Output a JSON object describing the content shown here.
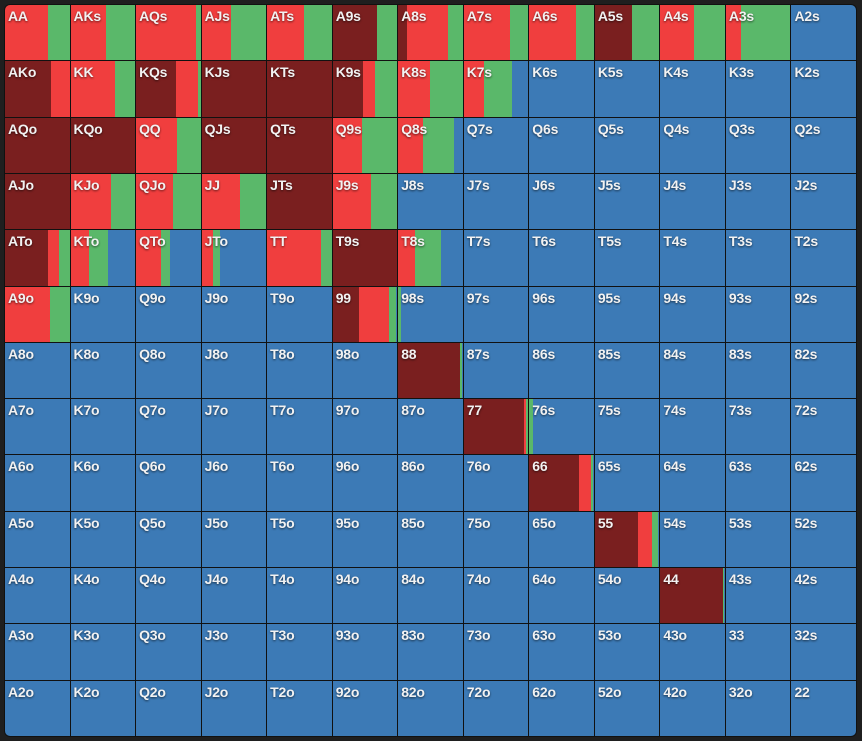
{
  "colors": {
    "raise_large": "#7a1f1f",
    "raise": "#f03e3e",
    "call": "#5ab86a",
    "fold": "#3c7ab6"
  },
  "mix_order": [
    "raise_large",
    "raise",
    "call",
    "fold"
  ],
  "default_mix": [
    0,
    0,
    0,
    1
  ],
  "grid": [
    [
      "AA",
      "AKs",
      "AQs",
      "AJs",
      "ATs",
      "A9s",
      "A8s",
      "A7s",
      "A6s",
      "A5s",
      "A4s",
      "A3s",
      "A2s"
    ],
    [
      "AKo",
      "KK",
      "KQs",
      "KJs",
      "KTs",
      "K9s",
      "K8s",
      "K7s",
      "K6s",
      "K5s",
      "K4s",
      "K3s",
      "K2s"
    ],
    [
      "AQo",
      "KQo",
      "QQ",
      "QJs",
      "QTs",
      "Q9s",
      "Q8s",
      "Q7s",
      "Q6s",
      "Q5s",
      "Q4s",
      "Q3s",
      "Q2s"
    ],
    [
      "AJo",
      "KJo",
      "QJo",
      "JJ",
      "JTs",
      "J9s",
      "J8s",
      "J7s",
      "J6s",
      "J5s",
      "J4s",
      "J3s",
      "J2s"
    ],
    [
      "ATo",
      "KTo",
      "QTo",
      "JTo",
      "TT",
      "T9s",
      "T8s",
      "T7s",
      "T6s",
      "T5s",
      "T4s",
      "T3s",
      "T2s"
    ],
    [
      "A9o",
      "K9o",
      "Q9o",
      "J9o",
      "T9o",
      "99",
      "98s",
      "97s",
      "96s",
      "95s",
      "94s",
      "93s",
      "92s"
    ],
    [
      "A8o",
      "K8o",
      "Q8o",
      "J8o",
      "T8o",
      "98o",
      "88",
      "87s",
      "86s",
      "85s",
      "84s",
      "83s",
      "82s"
    ],
    [
      "A7o",
      "K7o",
      "Q7o",
      "J7o",
      "T7o",
      "97o",
      "87o",
      "77",
      "76s",
      "75s",
      "74s",
      "73s",
      "72s"
    ],
    [
      "A6o",
      "K6o",
      "Q6o",
      "J6o",
      "T6o",
      "96o",
      "86o",
      "76o",
      "66",
      "65s",
      "64s",
      "63s",
      "62s"
    ],
    [
      "A5o",
      "K5o",
      "Q5o",
      "J5o",
      "T5o",
      "95o",
      "85o",
      "75o",
      "65o",
      "55",
      "54s",
      "53s",
      "52s"
    ],
    [
      "A4o",
      "K4o",
      "Q4o",
      "J4o",
      "T4o",
      "94o",
      "84o",
      "74o",
      "64o",
      "54o",
      "44",
      "43s",
      "42s"
    ],
    [
      "A3o",
      "K3o",
      "Q3o",
      "J3o",
      "T3o",
      "93o",
      "83o",
      "73o",
      "63o",
      "53o",
      "43o",
      "33",
      "32s"
    ],
    [
      "A2o",
      "K2o",
      "Q2o",
      "J2o",
      "T2o",
      "92o",
      "82o",
      "72o",
      "62o",
      "52o",
      "42o",
      "32o",
      "22"
    ]
  ],
  "mixes": {
    "AA": [
      0,
      0.66,
      0.34,
      0
    ],
    "AKs": [
      0,
      0.55,
      0.45,
      0
    ],
    "AQs": [
      0,
      0.93,
      0.07,
      0
    ],
    "AJs": [
      0,
      0.45,
      0.55,
      0
    ],
    "ATs": [
      0,
      0.57,
      0.43,
      0
    ],
    "A9s": [
      0.69,
      0,
      0.31,
      0
    ],
    "A8s": [
      0.14,
      0.63,
      0.23,
      0
    ],
    "A7s": [
      0,
      0.71,
      0.29,
      0
    ],
    "A6s": [
      0,
      0.72,
      0.28,
      0
    ],
    "A5s": [
      0.57,
      0,
      0.43,
      0
    ],
    "A4s": [
      0,
      0.52,
      0.48,
      0
    ],
    "A3s": [
      0,
      0.23,
      0.77,
      0
    ],
    "AKo": [
      0.72,
      0.28,
      0,
      0
    ],
    "KK": [
      0,
      0.69,
      0.31,
      0
    ],
    "KQs": [
      0.62,
      0.34,
      0.04,
      0
    ],
    "KJs": [
      1,
      0,
      0,
      0
    ],
    "KTs": [
      1,
      0,
      0,
      0
    ],
    "K9s": [
      0.47,
      0.18,
      0.35,
      0
    ],
    "K8s": [
      0,
      0.5,
      0.5,
      0
    ],
    "K7s": [
      0,
      0.32,
      0.43,
      0.25
    ],
    "AQo": [
      1,
      0,
      0,
      0
    ],
    "KQo": [
      1,
      0,
      0,
      0
    ],
    "QQ": [
      0,
      0.64,
      0.36,
      0
    ],
    "QJs": [
      1,
      0,
      0,
      0
    ],
    "QTs": [
      1,
      0,
      0,
      0
    ],
    "Q9s": [
      0,
      0.46,
      0.54,
      0
    ],
    "Q8s": [
      0,
      0.38,
      0.49,
      0.13
    ],
    "AJo": [
      1,
      0,
      0,
      0
    ],
    "KJo": [
      0,
      0.63,
      0.37,
      0
    ],
    "QJo": [
      0,
      0.57,
      0.43,
      0
    ],
    "JJ": [
      0,
      0.59,
      0.41,
      0
    ],
    "JTs": [
      1,
      0,
      0,
      0
    ],
    "J9s": [
      0,
      0.59,
      0.41,
      0
    ],
    "ATo": [
      0.67,
      0.17,
      0.16,
      0
    ],
    "KTo": [
      0,
      0.29,
      0.29,
      0.42
    ],
    "QTo": [
      0,
      0.38,
      0.15,
      0.47
    ],
    "JTo": [
      0,
      0.17,
      0.11,
      0.72
    ],
    "TT": [
      0,
      0.83,
      0.17,
      0
    ],
    "T9s": [
      1,
      0,
      0,
      0
    ],
    "T8s": [
      0,
      0.26,
      0.41,
      0.33
    ],
    "A9o": [
      0,
      0.7,
      0.3,
      0
    ],
    "99": [
      0.4,
      0.48,
      0.1,
      0.02
    ],
    "98s": [
      0,
      0,
      0.04,
      0.96
    ],
    "88": [
      0.96,
      0,
      0.03,
      0.01
    ],
    "77": [
      0.93,
      0.04,
      0.03,
      0
    ],
    "76s": [
      0,
      0,
      0.05,
      0.95
    ],
    "66": [
      0.77,
      0.19,
      0.02,
      0.02
    ],
    "55": [
      0.67,
      0.22,
      0.09,
      0.02
    ],
    "44": [
      0.97,
      0,
      0.02,
      0.01
    ]
  }
}
